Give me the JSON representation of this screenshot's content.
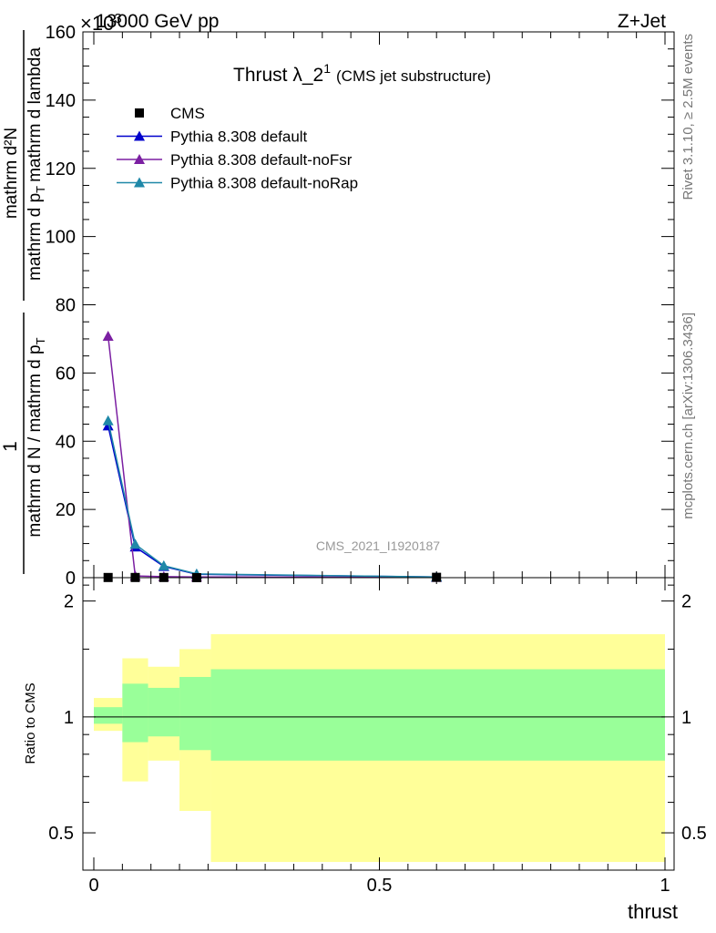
{
  "header": {
    "energy_label": "13000 GeV pp",
    "process_label": "Z+Jet",
    "exponent_label": "×10",
    "exponent_power": "3"
  },
  "side": {
    "rivet_label": "Rivet 3.1.10, ≥ 2.5M events",
    "mcplots_label": "mcplots.cern.ch [arXiv:1306.3436]"
  },
  "chart_data": [
    {
      "panel": "main",
      "type": "line",
      "title": "Thrust λ_2",
      "title_sup": "1",
      "title_suffix": "(CMS jet substructure)",
      "watermark": "CMS_2021_I1920187",
      "ylabel": "1 / mathrm d N / mathrm d p_T mathrm d N / mathrm d p_T mathrm d lambda",
      "ylabel_fraction": {
        "numerator": "mathrm d²N",
        "denominator_line1": "mathrm d N / mathrm d p",
        "denominator_line2": "mathrm d p",
        "denominator_sub": "T",
        "denominator_tail": "mathrm d lambda",
        "prefix_num": "1",
        "prefix_den": "mathrm d N / mathrm d p",
        "prefix_sub": "T"
      },
      "xlim": [
        0,
        1
      ],
      "ylim": [
        0,
        160
      ],
      "yticks": [
        0,
        20,
        40,
        60,
        80,
        100,
        120,
        140,
        160
      ],
      "legend_placement": "top-left",
      "series": [
        {
          "name": "CMS",
          "marker": "square",
          "color": "#000000",
          "x": [
            0.025,
            0.0725,
            0.1225,
            0.18,
            0.6
          ],
          "y": [
            0.05,
            0.05,
            0.05,
            0.0,
            0.1
          ]
        },
        {
          "name": "Pythia 8.308 default",
          "marker": "triangle",
          "color": "#0000cc",
          "x": [
            0.025,
            0.0725,
            0.1225,
            0.18,
            0.6
          ],
          "y": [
            44.5,
            9.0,
            3.3,
            1.0,
            0.2
          ]
        },
        {
          "name": "Pythia 8.308 default-noFsr",
          "marker": "triangle",
          "color": "#7b1fa2",
          "x": [
            0.025,
            0.0725,
            0.1225,
            0.18,
            0.6
          ],
          "y": [
            70.8,
            0.5,
            0.3,
            0.2,
            0.1
          ]
        },
        {
          "name": "Pythia 8.308 default-noRap",
          "marker": "triangle",
          "color": "#1f88a8",
          "x": [
            0.025,
            0.0725,
            0.1225,
            0.18,
            0.6
          ],
          "y": [
            46.0,
            9.8,
            3.5,
            1.1,
            0.2
          ]
        }
      ]
    },
    {
      "panel": "ratio",
      "type": "area",
      "ylabel": "Ratio to CMS",
      "xlabel": "thrust",
      "xlim": [
        0,
        1
      ],
      "ylim": [
        0.4,
        2.3
      ],
      "log_y": true,
      "yticks": [
        0.5,
        1,
        2
      ],
      "ytick_labels": [
        "0.5",
        "1",
        "2"
      ],
      "xticks": [
        0,
        0.5,
        1
      ],
      "xtick_labels": [
        "0",
        "0.5",
        "1"
      ],
      "bins": [
        [
          0.0,
          0.05
        ],
        [
          0.05,
          0.095
        ],
        [
          0.095,
          0.15
        ],
        [
          0.15,
          0.205
        ],
        [
          0.205,
          1.0
        ]
      ],
      "outer_band": {
        "color": "#ffff99",
        "lo": [
          0.92,
          0.68,
          0.77,
          0.57,
          0.42
        ],
        "hi": [
          1.12,
          1.42,
          1.35,
          1.5,
          1.64
        ]
      },
      "inner_band": {
        "color": "#99ff99",
        "lo": [
          0.96,
          0.86,
          0.89,
          0.82,
          0.77
        ],
        "hi": [
          1.06,
          1.22,
          1.19,
          1.27,
          1.33
        ]
      },
      "reference_line": 1
    }
  ]
}
